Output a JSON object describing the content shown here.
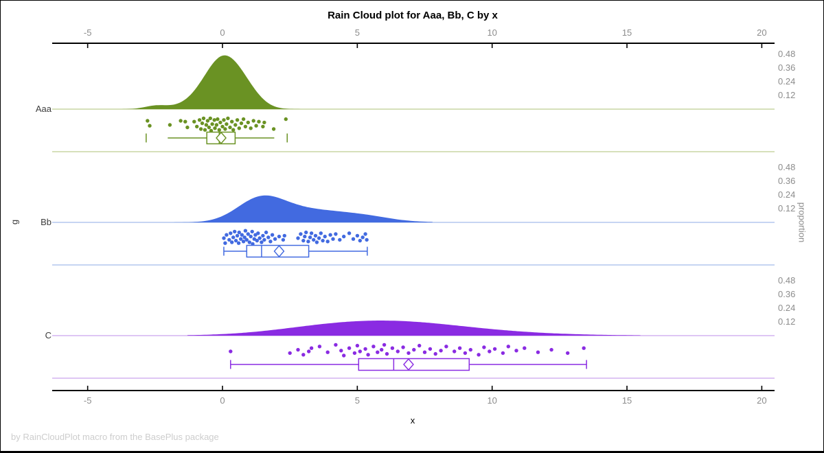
{
  "title": "Rain Cloud plot for Aaa, Bb, C by x",
  "footer": "by RainCloudPlot macro from the BasePlus package",
  "chart_data": {
    "type": "raincloud",
    "title": "Rain Cloud plot for Aaa, Bb, C by x",
    "xlabel": "x",
    "group_axis_label": "g",
    "right_axis_label": "proportion",
    "x_ticks": [
      "-5",
      "0",
      "5",
      "10",
      "15",
      "20"
    ],
    "x_tick_values": [
      -5,
      0,
      5,
      10,
      15,
      20
    ],
    "x_axis_range": [
      -6.3,
      20.5
    ],
    "proportion_ticks": [
      "0.48",
      "0.36",
      "0.24",
      "0.12"
    ],
    "proportion_tick_values": [
      0.48,
      0.36,
      0.24,
      0.12
    ],
    "grid": false,
    "groups": [
      {
        "label": "Aaa",
        "color": "#6A9223",
        "light_color": "#C9D6A3",
        "density": {
          "peak_proportion": 0.47,
          "clip": [
            -3.9,
            3.5
          ],
          "kernels": [
            {
              "m": 0.05,
              "s": 0.72,
              "a": 0.46
            },
            {
              "m": -2.45,
              "s": 0.42,
              "a": 0.03
            },
            {
              "m": 1.0,
              "s": 0.5,
              "a": 0.05
            },
            {
              "m": -1.3,
              "s": 0.6,
              "a": 0.02
            }
          ]
        },
        "box": {
          "min": -2.03,
          "q1": -0.58,
          "median": -0.12,
          "q3": 0.47,
          "max": 1.92,
          "mean": -0.05,
          "outliers": [
            -2.83,
            2.4
          ]
        },
        "points": [
          [
            -2.78,
            0.25
          ],
          [
            -2.7,
            0.55
          ],
          [
            -1.95,
            0.5
          ],
          [
            -1.55,
            0.25
          ],
          [
            -1.38,
            0.3
          ],
          [
            -1.3,
            0.65
          ],
          [
            -1.05,
            0.3
          ],
          [
            -0.95,
            0.6
          ],
          [
            -0.85,
            0.2
          ],
          [
            -0.8,
            0.75
          ],
          [
            -0.75,
            0.4
          ],
          [
            -0.7,
            0.1
          ],
          [
            -0.65,
            0.8
          ],
          [
            -0.6,
            0.5
          ],
          [
            -0.55,
            0.25
          ],
          [
            -0.5,
            0.65
          ],
          [
            -0.45,
            0.1
          ],
          [
            -0.42,
            0.85
          ],
          [
            -0.38,
            0.45
          ],
          [
            -0.3,
            0.2
          ],
          [
            -0.28,
            0.7
          ],
          [
            -0.22,
            0.5
          ],
          [
            -0.18,
            0.15
          ],
          [
            -0.12,
            0.8
          ],
          [
            -0.08,
            0.35
          ],
          [
            0.0,
            0.6
          ],
          [
            0.05,
            0.2
          ],
          [
            0.1,
            0.75
          ],
          [
            0.15,
            0.45
          ],
          [
            0.2,
            0.1
          ],
          [
            0.28,
            0.65
          ],
          [
            0.35,
            0.3
          ],
          [
            0.4,
            0.8
          ],
          [
            0.48,
            0.5
          ],
          [
            0.55,
            0.2
          ],
          [
            0.62,
            0.7
          ],
          [
            0.7,
            0.4
          ],
          [
            0.78,
            0.15
          ],
          [
            0.85,
            0.6
          ],
          [
            0.95,
            0.35
          ],
          [
            1.05,
            0.7
          ],
          [
            1.15,
            0.25
          ],
          [
            1.25,
            0.55
          ],
          [
            1.35,
            0.3
          ],
          [
            1.5,
            0.6
          ],
          [
            1.55,
            0.35
          ],
          [
            1.9,
            0.75
          ],
          [
            2.35,
            0.15
          ]
        ]
      },
      {
        "label": "Bb",
        "color": "#426AE0",
        "light_color": "#B3C7EE",
        "density": {
          "peak_proportion": 0.23,
          "clip": [
            -1.9,
            7.8
          ],
          "kernels": [
            {
              "m": 1.35,
              "s": 0.85,
              "a": 0.175
            },
            {
              "m": 2.3,
              "s": 1.0,
              "a": 0.055
            },
            {
              "m": 4.0,
              "s": 1.5,
              "a": 0.09
            },
            {
              "m": 5.6,
              "s": 0.7,
              "a": 0.008
            }
          ]
        },
        "box": {
          "min": 0.05,
          "q1": 0.9,
          "median": 1.45,
          "q3": 3.2,
          "max": 5.37,
          "mean": 2.1,
          "outliers": []
        },
        "points": [
          [
            0.05,
            0.5
          ],
          [
            0.1,
            0.8
          ],
          [
            0.15,
            0.3
          ],
          [
            0.25,
            0.6
          ],
          [
            0.3,
            0.2
          ],
          [
            0.35,
            0.75
          ],
          [
            0.4,
            0.45
          ],
          [
            0.45,
            0.1
          ],
          [
            0.5,
            0.65
          ],
          [
            0.55,
            0.35
          ],
          [
            0.6,
            0.8
          ],
          [
            0.62,
            0.15
          ],
          [
            0.68,
            0.55
          ],
          [
            0.72,
            0.3
          ],
          [
            0.78,
            0.7
          ],
          [
            0.82,
            0.45
          ],
          [
            0.85,
            0.05
          ],
          [
            0.9,
            0.6
          ],
          [
            0.95,
            0.25
          ],
          [
            1.0,
            0.75
          ],
          [
            1.05,
            0.4
          ],
          [
            1.1,
            0.1
          ],
          [
            1.12,
            0.85
          ],
          [
            1.18,
            0.55
          ],
          [
            1.22,
            0.3
          ],
          [
            1.28,
            0.65
          ],
          [
            1.32,
            0.2
          ],
          [
            1.38,
            0.5
          ],
          [
            1.45,
            0.75
          ],
          [
            1.5,
            0.35
          ],
          [
            1.55,
            0.6
          ],
          [
            1.62,
            0.15
          ],
          [
            1.7,
            0.45
          ],
          [
            1.78,
            0.7
          ],
          [
            1.85,
            0.3
          ],
          [
            1.95,
            0.55
          ],
          [
            2.1,
            0.4
          ],
          [
            2.25,
            0.6
          ],
          [
            2.3,
            0.35
          ],
          [
            2.8,
            0.5
          ],
          [
            2.9,
            0.25
          ],
          [
            3.0,
            0.65
          ],
          [
            3.05,
            0.4
          ],
          [
            3.1,
            0.15
          ],
          [
            3.18,
            0.7
          ],
          [
            3.25,
            0.45
          ],
          [
            3.3,
            0.2
          ],
          [
            3.38,
            0.6
          ],
          [
            3.45,
            0.35
          ],
          [
            3.5,
            0.75
          ],
          [
            3.58,
            0.5
          ],
          [
            3.65,
            0.2
          ],
          [
            3.72,
            0.65
          ],
          [
            3.8,
            0.4
          ],
          [
            3.9,
            0.7
          ],
          [
            4.0,
            0.3
          ],
          [
            4.1,
            0.55
          ],
          [
            4.2,
            0.25
          ],
          [
            4.35,
            0.6
          ],
          [
            4.5,
            0.4
          ],
          [
            4.7,
            0.2
          ],
          [
            4.85,
            0.55
          ],
          [
            5.0,
            0.35
          ],
          [
            5.1,
            0.65
          ],
          [
            5.2,
            0.45
          ],
          [
            5.3,
            0.25
          ],
          [
            5.35,
            0.6
          ]
        ]
      },
      {
        "label": "C",
        "color": "#8A2BE2",
        "light_color": "#D3B4F0",
        "density": {
          "peak_proportion": 0.13,
          "clip": [
            -1.3,
            15.5
          ],
          "kernels": [
            {
              "m": 5.7,
              "s": 2.6,
              "a": 0.095
            },
            {
              "m": 8.0,
              "s": 3.2,
              "a": 0.04
            },
            {
              "m": 3.2,
              "s": 1.8,
              "a": 0.015
            }
          ]
        },
        "box": {
          "min": 0.3,
          "q1": 5.05,
          "median": 6.35,
          "q3": 9.15,
          "max": 13.5,
          "mean": 6.9,
          "outliers": []
        },
        "points": [
          [
            0.3,
            0.5
          ],
          [
            2.5,
            0.6
          ],
          [
            2.8,
            0.4
          ],
          [
            3.0,
            0.7
          ],
          [
            3.2,
            0.5
          ],
          [
            3.3,
            0.3
          ],
          [
            3.6,
            0.2
          ],
          [
            3.9,
            0.55
          ],
          [
            4.2,
            0.1
          ],
          [
            4.4,
            0.45
          ],
          [
            4.5,
            0.75
          ],
          [
            4.7,
            0.3
          ],
          [
            4.9,
            0.6
          ],
          [
            5.0,
            0.15
          ],
          [
            5.1,
            0.5
          ],
          [
            5.3,
            0.35
          ],
          [
            5.4,
            0.7
          ],
          [
            5.6,
            0.2
          ],
          [
            5.75,
            0.55
          ],
          [
            5.9,
            0.4
          ],
          [
            6.0,
            0.1
          ],
          [
            6.1,
            0.65
          ],
          [
            6.3,
            0.3
          ],
          [
            6.5,
            0.5
          ],
          [
            6.7,
            0.25
          ],
          [
            6.9,
            0.6
          ],
          [
            7.1,
            0.4
          ],
          [
            7.3,
            0.15
          ],
          [
            7.5,
            0.55
          ],
          [
            7.7,
            0.35
          ],
          [
            7.9,
            0.65
          ],
          [
            8.1,
            0.45
          ],
          [
            8.3,
            0.2
          ],
          [
            8.6,
            0.5
          ],
          [
            8.8,
            0.3
          ],
          [
            9.0,
            0.6
          ],
          [
            9.2,
            0.4
          ],
          [
            9.5,
            0.7
          ],
          [
            9.7,
            0.25
          ],
          [
            9.9,
            0.5
          ],
          [
            10.1,
            0.35
          ],
          [
            10.4,
            0.6
          ],
          [
            10.6,
            0.2
          ],
          [
            10.9,
            0.45
          ],
          [
            11.2,
            0.3
          ],
          [
            11.7,
            0.55
          ],
          [
            12.2,
            0.4
          ],
          [
            12.8,
            0.6
          ],
          [
            13.4,
            0.3
          ]
        ]
      }
    ]
  }
}
